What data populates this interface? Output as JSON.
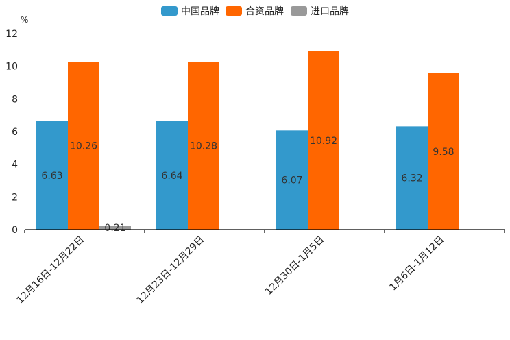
{
  "chart_data": {
    "type": "bar",
    "title": "",
    "ylabel": "%",
    "xlabel": "",
    "ylim": [
      0,
      12
    ],
    "yticks": [
      0,
      2,
      4,
      6,
      8,
      10,
      12
    ],
    "categories": [
      "12月16日-12月22日",
      "12月23日-12月29日",
      "12月30日-1月5日",
      "1月6日-1月12日"
    ],
    "series": [
      {
        "name": "中国品牌",
        "color": "#3399CC",
        "values": [
          6.63,
          6.64,
          6.07,
          6.32
        ]
      },
      {
        "name": "合资品牌",
        "color": "#FF6600",
        "values": [
          10.26,
          10.28,
          10.92,
          9.58
        ]
      },
      {
        "name": "进口品牌",
        "color": "#999999",
        "values": [
          0.21,
          null,
          null,
          null
        ]
      }
    ],
    "legend_position": "top-center",
    "grid": false
  }
}
